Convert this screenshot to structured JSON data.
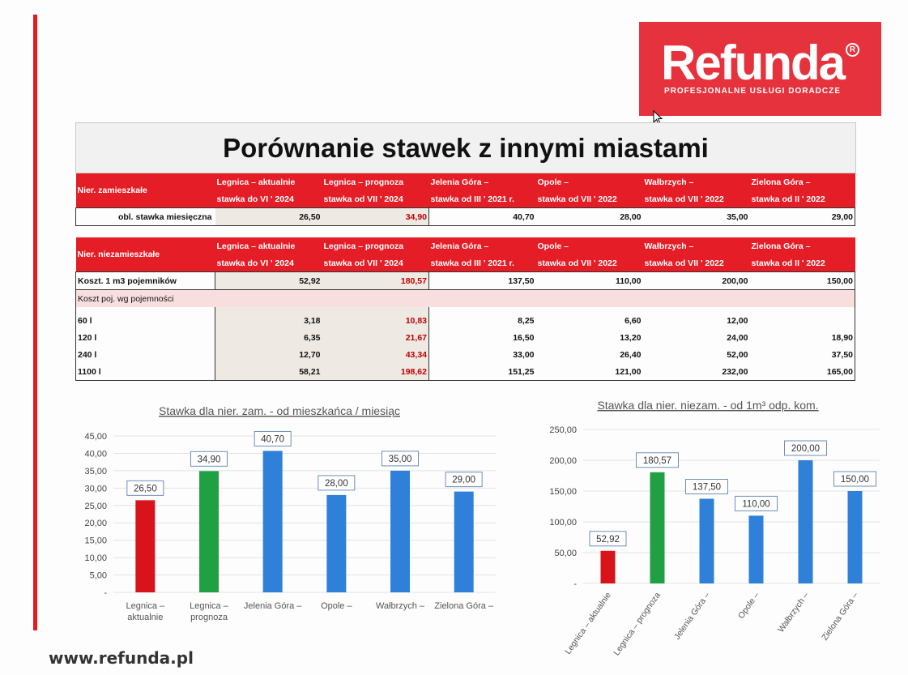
{
  "logo": {
    "brand": "Refunda",
    "tagline": "PROFESJONALNE USŁUGI DORADCZE",
    "color": "#e6323c"
  },
  "title": "Porównanie stawek z innymi miastami",
  "table1": {
    "label": "Nier. zamieszkałe",
    "headers": [
      [
        "Legnica – aktualnie",
        "stawka do VI ' 2024"
      ],
      [
        "Legnica – prognoza",
        "stawka od VII ' 2024"
      ],
      [
        "Jelenia Góra –",
        "stawka od III ' 2021 r."
      ],
      [
        "Opole –",
        "stawka od VII ' 2022"
      ],
      [
        "Wałbrzych –",
        "stawka od VII ' 2022"
      ],
      [
        "Zielona Góra –",
        "stawka od II ' 2022"
      ]
    ],
    "row_label": "obl. stawka miesięczna",
    "values": [
      "26,50",
      "34,90",
      "40,70",
      "28,00",
      "35,00",
      "29,00"
    ]
  },
  "table2": {
    "label": "Nier. niezamieszkałe",
    "headers": [
      [
        "Legnica – aktualnie",
        "stawka do VI ' 2024"
      ],
      [
        "Legnica – prognoza",
        "stawka od VII ' 2024"
      ],
      [
        "Jelenia Góra –",
        "stawka od III ' 2021 r."
      ],
      [
        "Opole –",
        "stawka od VII ' 2022"
      ],
      [
        "Wałbrzych –",
        "stawka od VII ' 2022"
      ],
      [
        "Zielona Góra –",
        "stawka od II ' 2022"
      ]
    ],
    "main_label": "Koszt. 1 m3 pojemników",
    "main_values": [
      "52,92",
      "180,57",
      "137,50",
      "110,00",
      "200,00",
      "150,00"
    ],
    "section_label": "Koszt poj. wg pojemności",
    "rows": [
      {
        "label": "60 l",
        "values": [
          "3,18",
          "10,83",
          "8,25",
          "6,60",
          "12,00",
          ""
        ]
      },
      {
        "label": "120 l",
        "values": [
          "6,35",
          "21,67",
          "16,50",
          "13,20",
          "24,00",
          "18,90"
        ]
      },
      {
        "label": "240 l",
        "values": [
          "12,70",
          "43,34",
          "33,00",
          "26,40",
          "52,00",
          "37,50"
        ]
      },
      {
        "label": "1100 l",
        "values": [
          "58,21",
          "198,62",
          "151,25",
          "121,00",
          "232,00",
          "165,00"
        ]
      }
    ]
  },
  "chart_data": [
    {
      "type": "bar",
      "title": "Stawka dla nier. zam. - od mieszkańca / miesiąc",
      "categories": [
        "Legnica – aktualnie",
        "Legnica – prognoza",
        "Jelenia Góra –",
        "Opole –",
        "Wałbrzych –",
        "Zielona Góra –"
      ],
      "values": [
        26.5,
        34.9,
        40.7,
        28.0,
        35.0,
        29.0
      ],
      "value_labels": [
        "26,50",
        "34,90",
        "40,70",
        "28,00",
        "35,00",
        "29,00"
      ],
      "colors": [
        "#d9131a",
        "#1fa043",
        "#2f80d8",
        "#2f80d8",
        "#2f80d8",
        "#2f80d8"
      ],
      "ylim": [
        0,
        45
      ],
      "yticks": [
        "-",
        "5,00",
        "10,00",
        "15,00",
        "20,00",
        "25,00",
        "30,00",
        "35,00",
        "40,00",
        "45,00"
      ],
      "grid": true
    },
    {
      "type": "bar",
      "title": "Stawka dla nier. niezam. - od 1m³ odp. kom.",
      "categories": [
        "Legnica – aktualnie",
        "Legnica – prognoza",
        "Jelenia Góra –",
        "Opole –",
        "Wałbrzych –",
        "Zielona Góra –"
      ],
      "values": [
        52.92,
        180.57,
        137.5,
        110.0,
        200.0,
        150.0
      ],
      "value_labels": [
        "52,92",
        "180,57",
        "137,50",
        "110,00",
        "200,00",
        "150,00"
      ],
      "colors": [
        "#d9131a",
        "#1fa043",
        "#2f80d8",
        "#2f80d8",
        "#2f80d8",
        "#2f80d8"
      ],
      "ylim": [
        0,
        250
      ],
      "yticks": [
        "-",
        "50,00",
        "100,00",
        "150,00",
        "200,00",
        "250,00"
      ],
      "grid": true
    }
  ],
  "footer": {
    "url": "www.refunda.pl"
  }
}
